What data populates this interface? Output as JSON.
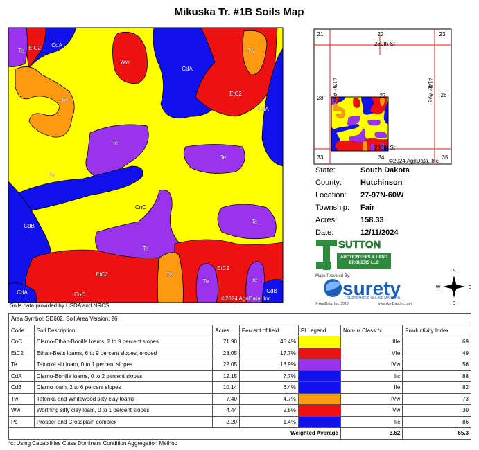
{
  "title": "Mikuska Tr. #1B Soils Map",
  "soil_map": {
    "labels": [
      "Te",
      "EtC2",
      "CdA",
      "Ww",
      "CdA",
      "Tw",
      "Tw",
      "EtC2",
      "CdA",
      "Te",
      "Te",
      "Ps",
      "CnC",
      "CdB",
      "Te",
      "Te",
      "EtC2",
      "Tw",
      "EtC2",
      "Te",
      "Te",
      "CdA",
      "CnC",
      "CdB"
    ],
    "copyright": "©2024 AgriData, Inc."
  },
  "locator_map": {
    "sections": [
      "21",
      "22",
      "23",
      "28",
      "27",
      "26",
      "33",
      "34",
      "35"
    ],
    "roads": [
      "289th St",
      "290th St",
      "413th Ave",
      "414th Ave"
    ],
    "copyright": "©2024 AgriData, Inc."
  },
  "info": [
    {
      "label": "State:",
      "value": "South Dakota"
    },
    {
      "label": "County:",
      "value": "Hutchinson"
    },
    {
      "label": "Location:",
      "value": "27-97N-60W"
    },
    {
      "label": "Township:",
      "value": "Fair"
    },
    {
      "label": "Acres:",
      "value": "158.33"
    },
    {
      "label": "Date:",
      "value": "12/11/2024"
    }
  ],
  "sutton": {
    "name": "SUTTON",
    "tagline": "AUCTIONEERS & LAND BROKERS LLC"
  },
  "surety": {
    "provided": "Maps Provided By:",
    "name": "surety",
    "tagline": "CUSTOMIZED ONLINE MAPPING",
    "copyright": "© AgriData, Inc. 2023",
    "url": "www.AgriDataInc.com"
  },
  "compass": [
    "N",
    "E",
    "S",
    "W"
  ],
  "source_note": "Soils data provided by USDA and NRCS.",
  "table": {
    "caption": "Area Symbol: SD602, Soil Area Version: 26",
    "headers": [
      "Code",
      "Soil Description",
      "Acres",
      "Percent of field",
      "PI Legend",
      "Non-Irr Class *c",
      "Productivity Index"
    ],
    "rows": [
      {
        "code": "CnC",
        "description": "Clarno-Ethan-Bonilla loams, 2 to 9 percent slopes",
        "acres": "71.90",
        "percent": "45.4%",
        "color": "#ffff00",
        "class": "IIIe",
        "index": "69"
      },
      {
        "code": "EtC2",
        "description": "Ethan-Betts loams, 6 to 9 percent slopes, eroded",
        "acres": "28.05",
        "percent": "17.7%",
        "color": "#ee1111",
        "class": "VIe",
        "index": "49"
      },
      {
        "code": "Te",
        "description": "Tetonka silt loam, 0 to 1 percent slopes",
        "acres": "22.05",
        "percent": "13.9%",
        "color": "#9933ee",
        "class": "IVw",
        "index": "56"
      },
      {
        "code": "CdA",
        "description": "Clarno-Bonilla loams, 0 to 2 percent slopes",
        "acres": "12.15",
        "percent": "7.7%",
        "color": "#1111ee",
        "class": "IIc",
        "index": "88"
      },
      {
        "code": "CdB",
        "description": "Clarno loam, 2 to 6 percent slopes",
        "acres": "10.14",
        "percent": "6.4%",
        "color": "#1111ee",
        "class": "IIe",
        "index": "82"
      },
      {
        "code": "Tw",
        "description": "Tetonka and Whitewood silty clay loams",
        "acres": "7.40",
        "percent": "4.7%",
        "color": "#ff9911",
        "class": "IVw",
        "index": "73"
      },
      {
        "code": "Ww",
        "description": "Worthing silty clay loam, 0 to 1 percent slopes",
        "acres": "4.44",
        "percent": "2.8%",
        "color": "#ee1111",
        "class": "Vw",
        "index": "30"
      },
      {
        "code": "Ps",
        "description": "Prosper and Crossplain complex",
        "acres": "2.20",
        "percent": "1.4%",
        "color": "#1111ee",
        "class": "IIc",
        "index": "86"
      }
    ],
    "footer": {
      "label": "Weighted Average",
      "class": "3.62",
      "index": "65.3"
    }
  },
  "footnote": "*c: Using Capabilities Class Dominant Condition Aggregation Method"
}
